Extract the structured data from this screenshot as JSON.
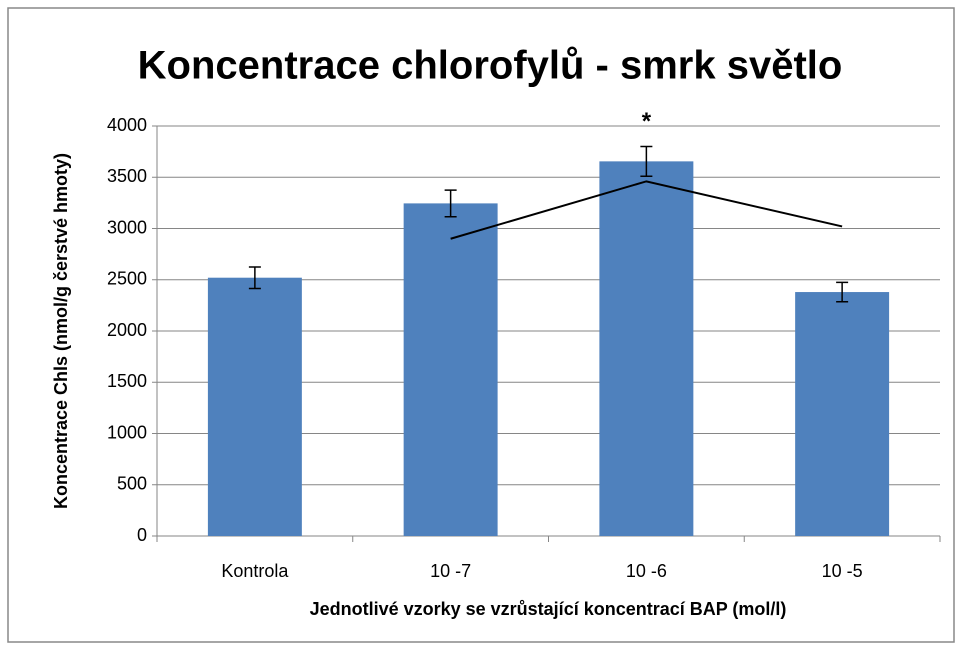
{
  "chart_data": {
    "type": "bar",
    "title": "Koncentrace chlorofylů - smrk světlo",
    "x_label": "Jednotlivé vzorky se vzrůstající koncentrací BAP (mol/l)",
    "y_label": "Koncentrace Chls (nmol/g čerstvé hmoty)",
    "categories": [
      "Kontrola",
      "10 -7",
      "10 -6",
      "10 -5"
    ],
    "values": [
      2520,
      3245,
      3655,
      2380
    ],
    "errors": [
      105,
      130,
      145,
      95
    ],
    "color": "#4f81bd",
    "trend": {
      "values": [
        null,
        2900,
        3460,
        3020
      ],
      "color": "#000000"
    },
    "annotation": "*",
    "ylim": [
      0,
      4000
    ],
    "yticks": [
      0,
      500,
      1000,
      1500,
      2000,
      2500,
      3000,
      3500,
      4000
    ],
    "grid": true
  }
}
